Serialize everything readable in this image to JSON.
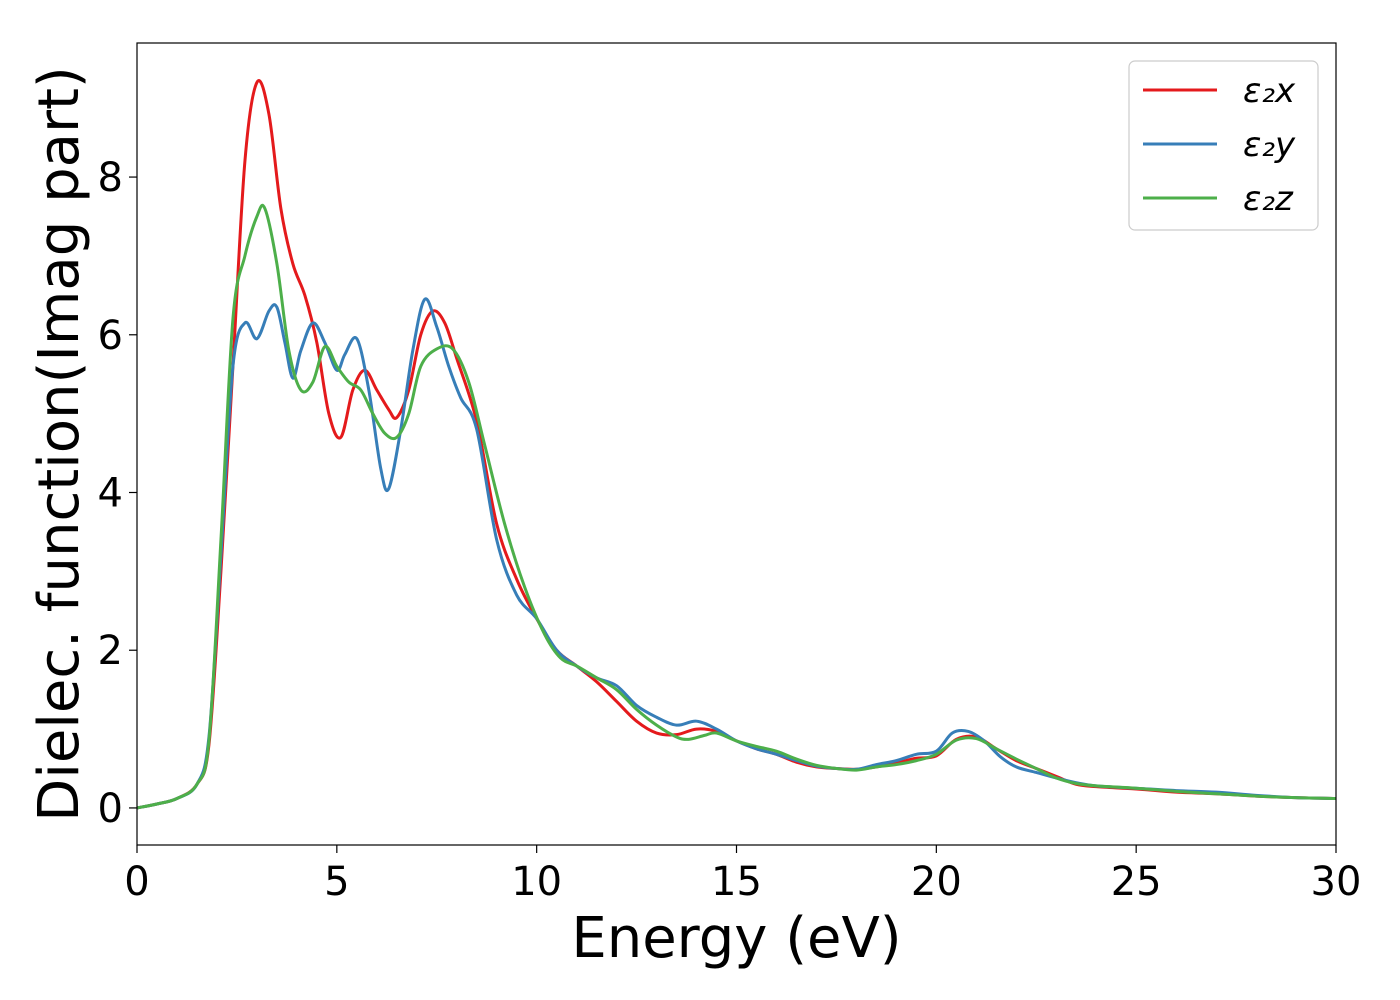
{
  "chart_data": {
    "type": "line",
    "xlabel": "Energy (eV)",
    "ylabel": "Dielec. function(Imag part)",
    "xlim": [
      0,
      30
    ],
    "ylim": [
      -0.47,
      9.7
    ],
    "xticks": [
      0,
      5,
      10,
      15,
      20,
      25,
      30
    ],
    "yticks": [
      0,
      2,
      4,
      6,
      8
    ],
    "grid": false,
    "legend_position": "top-right",
    "series": [
      {
        "name": "ε₂x",
        "color": "#e41a1c",
        "points": [
          [
            0,
            0
          ],
          [
            0.5,
            0.05
          ],
          [
            1.0,
            0.12
          ],
          [
            1.5,
            0.3
          ],
          [
            1.8,
            0.8
          ],
          [
            2.1,
            3.0
          ],
          [
            2.4,
            5.6
          ],
          [
            2.7,
            8.2
          ],
          [
            3.0,
            9.2
          ],
          [
            3.3,
            8.8
          ],
          [
            3.6,
            7.6
          ],
          [
            3.9,
            6.9
          ],
          [
            4.2,
            6.5
          ],
          [
            4.5,
            5.9
          ],
          [
            4.8,
            5.0
          ],
          [
            5.1,
            4.7
          ],
          [
            5.4,
            5.3
          ],
          [
            5.7,
            5.55
          ],
          [
            6.0,
            5.3
          ],
          [
            6.3,
            5.05
          ],
          [
            6.5,
            4.95
          ],
          [
            6.8,
            5.3
          ],
          [
            7.1,
            6.0
          ],
          [
            7.4,
            6.3
          ],
          [
            7.7,
            6.15
          ],
          [
            8.0,
            5.7
          ],
          [
            8.5,
            4.9
          ],
          [
            9.0,
            3.6
          ],
          [
            9.5,
            2.9
          ],
          [
            10.0,
            2.4
          ],
          [
            10.5,
            2.0
          ],
          [
            11.0,
            1.8
          ],
          [
            11.5,
            1.6
          ],
          [
            12.0,
            1.35
          ],
          [
            12.5,
            1.1
          ],
          [
            13.0,
            0.95
          ],
          [
            13.5,
            0.93
          ],
          [
            14.0,
            1.0
          ],
          [
            14.5,
            0.97
          ],
          [
            15.0,
            0.85
          ],
          [
            15.5,
            0.75
          ],
          [
            16.0,
            0.68
          ],
          [
            16.5,
            0.58
          ],
          [
            17.0,
            0.52
          ],
          [
            17.5,
            0.5
          ],
          [
            18.0,
            0.49
          ],
          [
            18.5,
            0.52
          ],
          [
            19.0,
            0.57
          ],
          [
            19.5,
            0.63
          ],
          [
            20.0,
            0.66
          ],
          [
            20.5,
            0.87
          ],
          [
            21.0,
            0.9
          ],
          [
            21.5,
            0.75
          ],
          [
            22.0,
            0.6
          ],
          [
            22.5,
            0.5
          ],
          [
            23.0,
            0.4
          ],
          [
            23.5,
            0.3
          ],
          [
            24.0,
            0.27
          ],
          [
            25.0,
            0.24
          ],
          [
            26.0,
            0.2
          ],
          [
            27.0,
            0.18
          ],
          [
            28.0,
            0.15
          ],
          [
            29.0,
            0.13
          ],
          [
            30.0,
            0.12
          ]
        ]
      },
      {
        "name": "ε₂y",
        "color": "#377eb8",
        "points": [
          [
            0,
            0
          ],
          [
            0.5,
            0.05
          ],
          [
            1.0,
            0.12
          ],
          [
            1.5,
            0.3
          ],
          [
            1.8,
            0.9
          ],
          [
            2.1,
            3.2
          ],
          [
            2.4,
            5.6
          ],
          [
            2.7,
            6.15
          ],
          [
            3.0,
            5.95
          ],
          [
            3.3,
            6.3
          ],
          [
            3.5,
            6.35
          ],
          [
            3.7,
            5.9
          ],
          [
            3.9,
            5.45
          ],
          [
            4.1,
            5.8
          ],
          [
            4.4,
            6.15
          ],
          [
            4.7,
            5.9
          ],
          [
            5.0,
            5.55
          ],
          [
            5.2,
            5.75
          ],
          [
            5.5,
            5.95
          ],
          [
            5.8,
            5.3
          ],
          [
            6.1,
            4.3
          ],
          [
            6.3,
            4.05
          ],
          [
            6.6,
            4.8
          ],
          [
            6.9,
            5.8
          ],
          [
            7.2,
            6.45
          ],
          [
            7.5,
            6.1
          ],
          [
            7.8,
            5.6
          ],
          [
            8.1,
            5.2
          ],
          [
            8.5,
            4.8
          ],
          [
            9.0,
            3.4
          ],
          [
            9.5,
            2.7
          ],
          [
            10.0,
            2.4
          ],
          [
            10.5,
            2.0
          ],
          [
            11.0,
            1.8
          ],
          [
            11.5,
            1.65
          ],
          [
            12.0,
            1.55
          ],
          [
            12.5,
            1.3
          ],
          [
            13.0,
            1.15
          ],
          [
            13.5,
            1.05
          ],
          [
            14.0,
            1.1
          ],
          [
            14.5,
            1.0
          ],
          [
            15.0,
            0.85
          ],
          [
            15.5,
            0.75
          ],
          [
            16.0,
            0.68
          ],
          [
            16.5,
            0.6
          ],
          [
            17.0,
            0.53
          ],
          [
            17.5,
            0.5
          ],
          [
            18.0,
            0.49
          ],
          [
            18.5,
            0.55
          ],
          [
            19.0,
            0.6
          ],
          [
            19.5,
            0.68
          ],
          [
            20.0,
            0.72
          ],
          [
            20.4,
            0.95
          ],
          [
            20.8,
            0.97
          ],
          [
            21.2,
            0.85
          ],
          [
            21.6,
            0.65
          ],
          [
            22.0,
            0.52
          ],
          [
            22.5,
            0.45
          ],
          [
            23.0,
            0.38
          ],
          [
            23.5,
            0.32
          ],
          [
            24.0,
            0.28
          ],
          [
            25.0,
            0.25
          ],
          [
            26.0,
            0.22
          ],
          [
            27.0,
            0.2
          ],
          [
            28.0,
            0.16
          ],
          [
            29.0,
            0.13
          ],
          [
            30.0,
            0.12
          ]
        ]
      },
      {
        "name": "ε₂z",
        "color": "#4daf4a",
        "points": [
          [
            0,
            0
          ],
          [
            0.5,
            0.05
          ],
          [
            1.0,
            0.12
          ],
          [
            1.5,
            0.3
          ],
          [
            1.8,
            0.85
          ],
          [
            2.1,
            3.4
          ],
          [
            2.4,
            6.2
          ],
          [
            2.7,
            7.0
          ],
          [
            3.0,
            7.5
          ],
          [
            3.2,
            7.6
          ],
          [
            3.5,
            6.9
          ],
          [
            3.8,
            5.8
          ],
          [
            4.1,
            5.3
          ],
          [
            4.4,
            5.4
          ],
          [
            4.7,
            5.85
          ],
          [
            5.0,
            5.6
          ],
          [
            5.3,
            5.4
          ],
          [
            5.6,
            5.3
          ],
          [
            5.9,
            5.0
          ],
          [
            6.2,
            4.75
          ],
          [
            6.5,
            4.7
          ],
          [
            6.8,
            5.0
          ],
          [
            7.1,
            5.6
          ],
          [
            7.5,
            5.82
          ],
          [
            7.9,
            5.82
          ],
          [
            8.3,
            5.4
          ],
          [
            8.7,
            4.6
          ],
          [
            9.2,
            3.6
          ],
          [
            9.7,
            2.8
          ],
          [
            10.2,
            2.2
          ],
          [
            10.6,
            1.9
          ],
          [
            11.0,
            1.8
          ],
          [
            11.5,
            1.65
          ],
          [
            12.0,
            1.5
          ],
          [
            12.5,
            1.25
          ],
          [
            13.0,
            1.05
          ],
          [
            13.5,
            0.9
          ],
          [
            13.8,
            0.87
          ],
          [
            14.2,
            0.92
          ],
          [
            14.5,
            0.95
          ],
          [
            15.0,
            0.85
          ],
          [
            15.5,
            0.78
          ],
          [
            16.0,
            0.72
          ],
          [
            16.5,
            0.62
          ],
          [
            17.0,
            0.54
          ],
          [
            17.5,
            0.5
          ],
          [
            18.0,
            0.48
          ],
          [
            18.5,
            0.52
          ],
          [
            19.0,
            0.55
          ],
          [
            19.5,
            0.6
          ],
          [
            20.0,
            0.68
          ],
          [
            20.5,
            0.86
          ],
          [
            21.0,
            0.88
          ],
          [
            21.5,
            0.75
          ],
          [
            22.0,
            0.62
          ],
          [
            22.5,
            0.5
          ],
          [
            23.0,
            0.38
          ],
          [
            23.5,
            0.31
          ],
          [
            24.0,
            0.28
          ],
          [
            25.0,
            0.25
          ],
          [
            26.0,
            0.21
          ],
          [
            27.0,
            0.18
          ],
          [
            28.0,
            0.15
          ],
          [
            29.0,
            0.13
          ],
          [
            30.0,
            0.12
          ]
        ]
      }
    ]
  }
}
